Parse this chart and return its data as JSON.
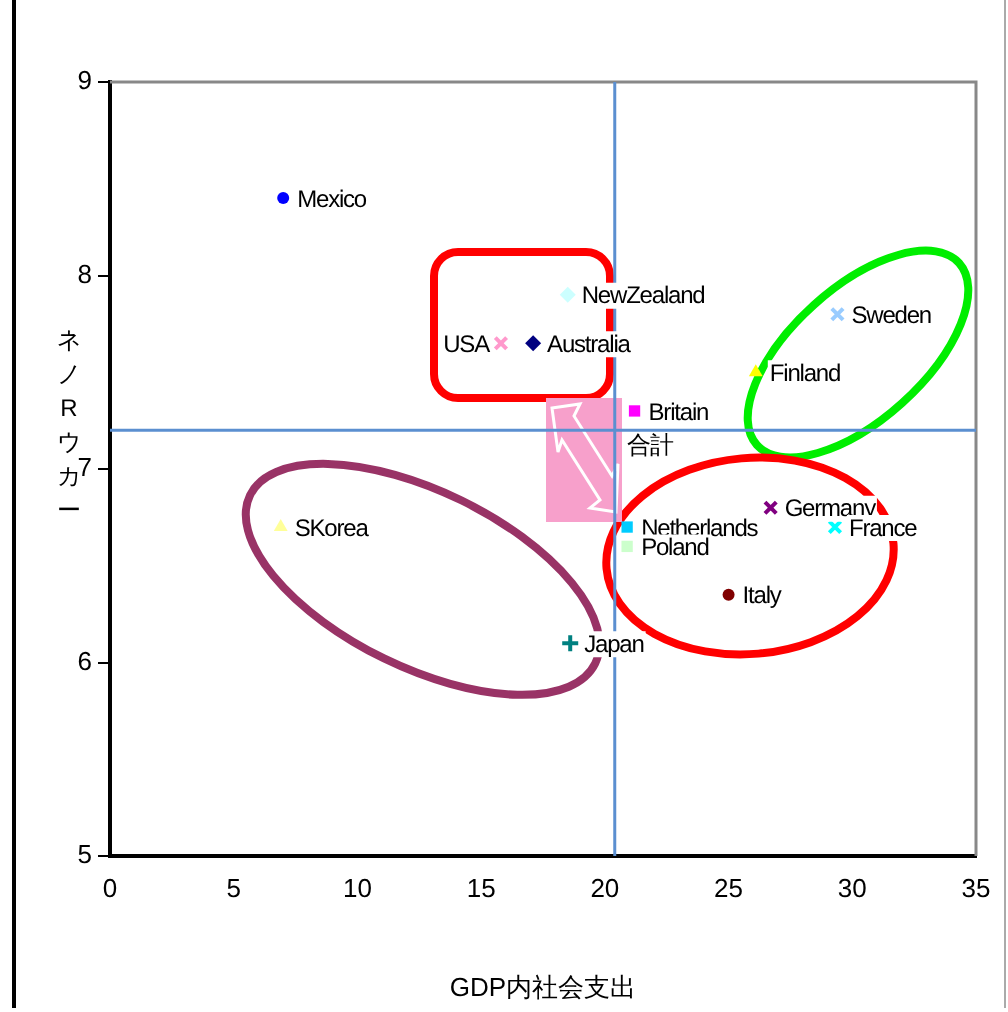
{
  "chart_data": {
    "type": "scatter",
    "xlabel": "GDP内社会支出",
    "ylabel": "ネノRウカー",
    "xlim": [
      0,
      35
    ],
    "xticks": [
      0,
      5,
      10,
      15,
      20,
      25,
      30,
      35
    ],
    "ylim": [
      5,
      9
    ],
    "yticks": [
      5,
      6,
      7,
      8,
      9
    ],
    "grid": false,
    "legend": false,
    "ref_lines": [
      {
        "axis": "x",
        "value": 20.4,
        "color": "#5b8fd0"
      },
      {
        "axis": "y",
        "value": 7.2,
        "color": "#5b8fd0"
      }
    ],
    "annotations": [
      {
        "text": "合計",
        "x": 20.4,
        "y": 7.2
      }
    ],
    "series": [
      {
        "name": "Mexico",
        "color": "#0000ff",
        "marker": "circle",
        "x": [
          7.0
        ],
        "values": [
          8.4
        ]
      },
      {
        "name": "NewZealand",
        "color": "#ccffff",
        "marker": "diamond",
        "x": [
          18.5
        ],
        "values": [
          7.9
        ]
      },
      {
        "name": "USA",
        "color": "#ff99cc",
        "marker": "cross",
        "x": [
          15.8
        ],
        "values": [
          7.65
        ]
      },
      {
        "name": "Australia",
        "color": "#000080",
        "marker": "diamond",
        "x": [
          17.1
        ],
        "values": [
          7.65
        ]
      },
      {
        "name": "Britain",
        "color": "#ff00ff",
        "marker": "square",
        "x": [
          21.2
        ],
        "values": [
          7.3
        ]
      },
      {
        "name": "Sweden",
        "color": "#99ccff",
        "marker": "cross",
        "x": [
          29.4
        ],
        "values": [
          7.8
        ]
      },
      {
        "name": "Finland",
        "color": "#ffff00",
        "marker": "triangle",
        "x": [
          26.1
        ],
        "values": [
          7.5
        ]
      },
      {
        "name": "Germany",
        "color": "#800080",
        "marker": "cross",
        "x": [
          26.7
        ],
        "values": [
          6.8
        ]
      },
      {
        "name": "France",
        "color": "#00ffff",
        "marker": "cross",
        "x": [
          29.3
        ],
        "values": [
          6.7
        ]
      },
      {
        "name": "Netherlands",
        "color": "#00ccff",
        "marker": "square",
        "x": [
          20.9
        ],
        "values": [
          6.7
        ]
      },
      {
        "name": "Poland",
        "color": "#ccffcc",
        "marker": "square",
        "x": [
          20.9
        ],
        "values": [
          6.6
        ]
      },
      {
        "name": "Italy",
        "color": "#800000",
        "marker": "circle",
        "x": [
          25.0
        ],
        "values": [
          6.35
        ]
      },
      {
        "name": "SKorea",
        "color": "#ffff99",
        "marker": "triangle",
        "x": [
          6.9
        ],
        "values": [
          6.7
        ]
      },
      {
        "name": "Japan",
        "color": "#008080",
        "marker": "plus",
        "x": [
          18.6
        ],
        "values": [
          6.1
        ]
      }
    ]
  }
}
